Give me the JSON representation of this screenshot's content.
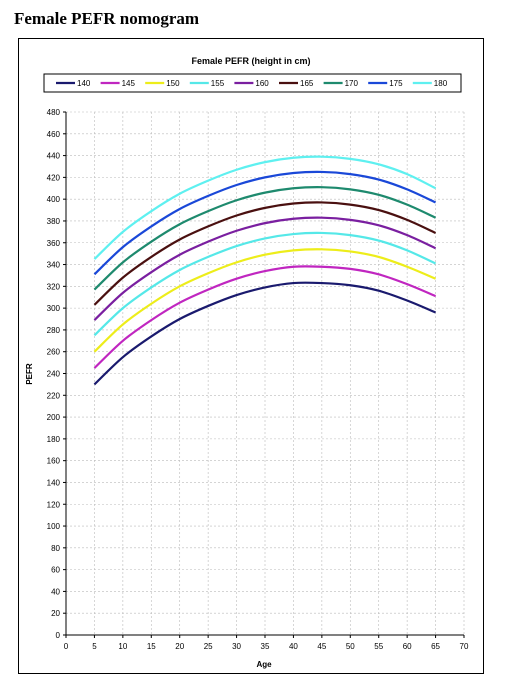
{
  "page": {
    "title": "Female PEFR nomogram"
  },
  "chart_data": {
    "type": "line",
    "title": "Female PEFR (height in cm)",
    "xlabel": "Age",
    "ylabel": "PEFR",
    "xlim": [
      0,
      70
    ],
    "ylim": [
      0,
      480
    ],
    "xticks": [
      0,
      5,
      10,
      15,
      20,
      25,
      30,
      35,
      40,
      45,
      50,
      55,
      60,
      65,
      70
    ],
    "yticks": [
      0,
      20,
      40,
      60,
      80,
      100,
      120,
      140,
      160,
      180,
      200,
      220,
      240,
      260,
      280,
      300,
      320,
      340,
      360,
      380,
      400,
      420,
      440,
      460,
      480
    ],
    "grid": true,
    "legend_position": "top",
    "series": [
      {
        "name": "140",
        "color": "#1a1a6e",
        "x": [
          5,
          10,
          15,
          20,
          25,
          30,
          35,
          40,
          45,
          50,
          55,
          60,
          65
        ],
        "y": [
          230,
          255,
          274,
          290,
          302,
          312,
          319,
          323,
          323,
          321,
          316,
          307,
          296
        ]
      },
      {
        "name": "145",
        "color": "#c026c0",
        "x": [
          5,
          10,
          15,
          20,
          25,
          30,
          35,
          40,
          45,
          50,
          55,
          60,
          65
        ],
        "y": [
          245,
          270,
          289,
          305,
          317,
          327,
          334,
          338,
          338,
          336,
          331,
          322,
          311
        ]
      },
      {
        "name": "150",
        "color": "#eded1a",
        "x": [
          5,
          10,
          15,
          20,
          25,
          30,
          35,
          40,
          45,
          50,
          55,
          60,
          65
        ],
        "y": [
          260,
          285,
          304,
          320,
          332,
          342,
          349,
          353,
          354,
          352,
          347,
          338,
          327
        ]
      },
      {
        "name": "155",
        "color": "#55e8e8",
        "x": [
          5,
          10,
          15,
          20,
          25,
          30,
          35,
          40,
          45,
          50,
          55,
          60,
          65
        ],
        "y": [
          275,
          300,
          319,
          335,
          347,
          357,
          364,
          368,
          369,
          367,
          362,
          353,
          341
        ]
      },
      {
        "name": "160",
        "color": "#7a1fa0",
        "x": [
          5,
          10,
          15,
          20,
          25,
          30,
          35,
          40,
          45,
          50,
          55,
          60,
          65
        ],
        "y": [
          289,
          314,
          333,
          349,
          361,
          371,
          378,
          382,
          383,
          381,
          376,
          367,
          355
        ]
      },
      {
        "name": "165",
        "color": "#4a1010",
        "x": [
          5,
          10,
          15,
          20,
          25,
          30,
          35,
          40,
          45,
          50,
          55,
          60,
          65
        ],
        "y": [
          303,
          328,
          347,
          363,
          375,
          385,
          392,
          396,
          397,
          395,
          390,
          381,
          369
        ]
      },
      {
        "name": "170",
        "color": "#1e8a6e",
        "x": [
          5,
          10,
          15,
          20,
          25,
          30,
          35,
          40,
          45,
          50,
          55,
          60,
          65
        ],
        "y": [
          317,
          342,
          361,
          377,
          389,
          399,
          406,
          410,
          411,
          409,
          404,
          395,
          383
        ]
      },
      {
        "name": "175",
        "color": "#1a48d8",
        "x": [
          5,
          10,
          15,
          20,
          25,
          30,
          35,
          40,
          45,
          50,
          55,
          60,
          65
        ],
        "y": [
          331,
          356,
          375,
          391,
          403,
          413,
          420,
          424,
          425,
          423,
          418,
          409,
          397
        ]
      },
      {
        "name": "180",
        "color": "#5ef0f0",
        "x": [
          5,
          10,
          15,
          20,
          25,
          30,
          35,
          40,
          45,
          50,
          55,
          60,
          65
        ],
        "y": [
          345,
          370,
          389,
          405,
          417,
          427,
          434,
          438,
          439,
          437,
          432,
          423,
          410
        ]
      }
    ]
  }
}
